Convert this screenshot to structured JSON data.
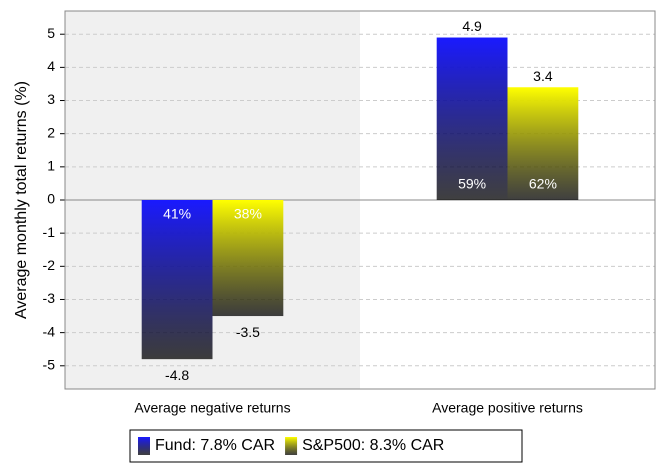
{
  "chart_data": {
    "type": "bar",
    "y_label": "Average monthly total returns (%)",
    "categories": [
      "Average negative returns",
      "Average positive returns"
    ],
    "series": [
      {
        "name": "Fund: 7.8% CAR",
        "color": "#1a1aff",
        "values": [
          -4.8,
          4.9
        ],
        "inner_labels": [
          "41%",
          "59%"
        ]
      },
      {
        "name": "S&P500: 8.3% CAR",
        "color": "#ffff00",
        "values": [
          -3.5,
          3.4
        ],
        "inner_labels": [
          "38%",
          "62%"
        ]
      }
    ],
    "ylim": [
      -5.7,
      5.7
    ],
    "yticks": [
      -5,
      -4,
      -3,
      -2,
      -1,
      0,
      1,
      2,
      3,
      4,
      5
    ],
    "grid": true,
    "legend": "bottom"
  }
}
